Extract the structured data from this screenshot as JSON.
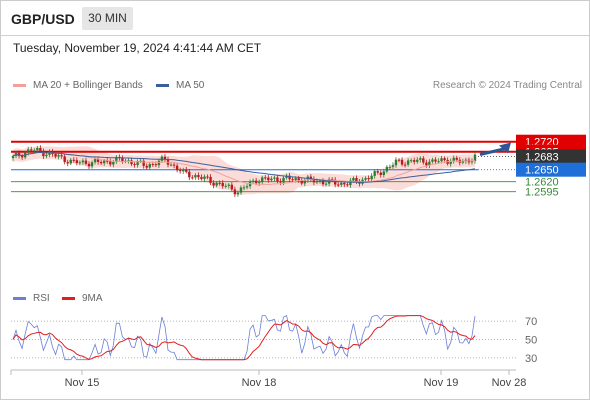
{
  "header": {
    "symbol": "GBP/USD",
    "timeframe": "30 MIN"
  },
  "timestamp": "Tuesday, November 19, 2024 4:41:44 AM CET",
  "legend": {
    "ma20": {
      "label": "MA 20 + Bollinger Bands",
      "color": "#f4a09a"
    },
    "ma50": {
      "label": "MA 50",
      "color": "#3a5f9a"
    },
    "copyright": "Research © 2024 Trading Central"
  },
  "levels": [
    {
      "label": "1.2720",
      "value": 1.272,
      "style": "resistance"
    },
    {
      "label": "1.2695",
      "value": 1.2695,
      "style": "resistance"
    },
    {
      "label": "1.2683",
      "value": 1.2683,
      "style": "current"
    },
    {
      "label": "1.2650",
      "value": 1.265,
      "style": "pivot"
    },
    {
      "label": "1.2620",
      "value": 1.262,
      "style": "support"
    },
    {
      "label": "1.2595",
      "value": 1.2595,
      "style": "support"
    }
  ],
  "rsi_legend": {
    "rsi": "RSI",
    "ma9": "9MA",
    "rsi_color": "#6b7fd7",
    "ma9_color": "#e02020"
  },
  "rsi_levels": [
    "70",
    "50",
    "30"
  ],
  "x_labels": [
    "Nov 15",
    "Nov 18",
    "Nov 19",
    "Nov 28"
  ],
  "colors": {
    "up": "#2e7d32",
    "down": "#b71c1c",
    "resistance": "#e00000",
    "pivot": "#1e6fd9",
    "support": "#3a8a3a",
    "current": "#333333"
  }
}
